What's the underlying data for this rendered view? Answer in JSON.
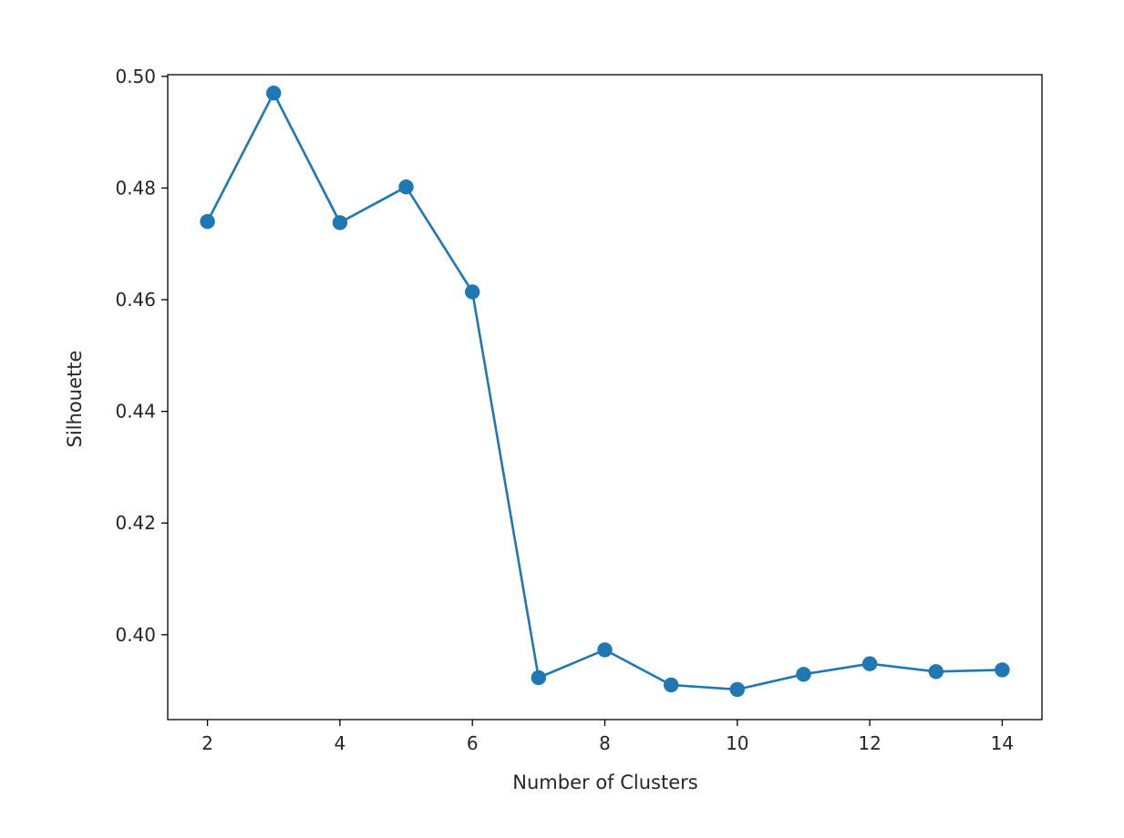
{
  "chart_data": {
    "type": "line",
    "title": "",
    "xlabel": "Number of Clusters",
    "ylabel": "Silhouette",
    "x": [
      2,
      3,
      4,
      5,
      6,
      7,
      8,
      9,
      10,
      11,
      12,
      13,
      14
    ],
    "series": [
      {
        "values": [
          0.474,
          0.497,
          0.4738,
          0.4802,
          0.4614,
          0.3923,
          0.3973,
          0.391,
          0.3902,
          0.3929,
          0.3948,
          0.3934,
          0.3937
        ],
        "color": "#1f77b4",
        "marker": "circle"
      }
    ],
    "xlim": [
      1.4,
      14.6
    ],
    "ylim": [
      0.3848,
      0.5003
    ],
    "xticks": [
      2,
      4,
      6,
      8,
      10,
      12,
      14
    ],
    "yticks": [
      0.4,
      0.42,
      0.44,
      0.46,
      0.48,
      0.5
    ],
    "xtick_labels": [
      "2",
      "4",
      "6",
      "8",
      "10",
      "12",
      "14"
    ],
    "ytick_labels": [
      "0.40",
      "0.42",
      "0.44",
      "0.46",
      "0.48",
      "0.50"
    ],
    "grid": false,
    "legend": "none"
  }
}
